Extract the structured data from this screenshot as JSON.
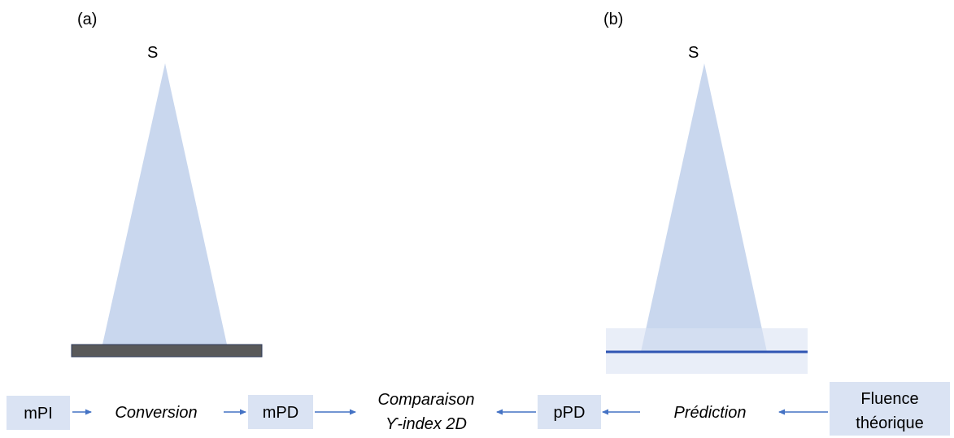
{
  "panels": {
    "a": {
      "label": "(a)",
      "source_label": "S"
    },
    "b": {
      "label": "(b)",
      "source_label": "S"
    }
  },
  "workflow": {
    "mpi": "mPI",
    "conversion": "Conversion",
    "mpd": "mPD",
    "comparison_line1": "Comparaison",
    "comparison_line2": "ϒ-index 2D",
    "ppd": "pPD",
    "prediction": "Prédiction",
    "fluence_line1": "Fluence",
    "fluence_line2": "théorique"
  },
  "colors": {
    "beam": "#c9d7ee",
    "box_fill": "#dae3f3",
    "arrow": "#4472c4",
    "detector_a": "#595959",
    "detector_b_line": "#2f55b3",
    "phantom_b": "#e3e9f5"
  }
}
